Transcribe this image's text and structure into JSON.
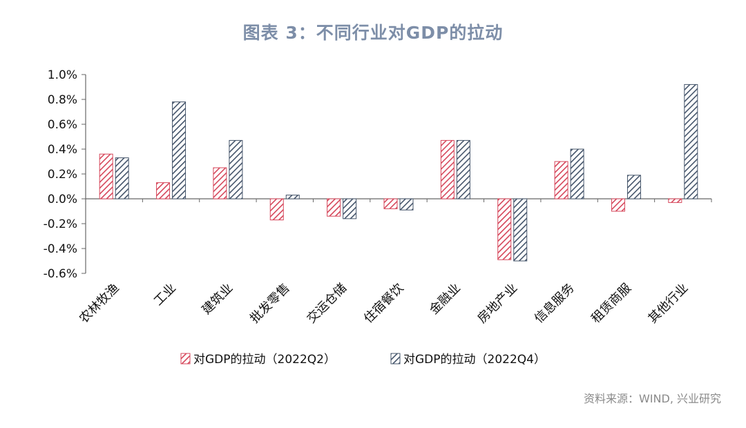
{
  "title": "图表 3：不同行业对GDP的拉动",
  "source": "资料来源：WIND, 兴业研究",
  "colors": {
    "q2": "#d6465a",
    "q4": "#44546a",
    "title": "#7d8ea8"
  },
  "chart_data": {
    "type": "bar",
    "categories": [
      "农林牧渔",
      "工业",
      "建筑业",
      "批发零售",
      "交运仓储",
      "住宿餐饮",
      "金融业",
      "房地产业",
      "信息服务",
      "租赁商服",
      "其他行业"
    ],
    "series": [
      {
        "name": "对GDP的拉动（2022Q2）",
        "values": [
          0.36,
          0.13,
          0.25,
          -0.17,
          -0.14,
          -0.08,
          0.47,
          -0.49,
          0.3,
          -0.1,
          -0.03
        ]
      },
      {
        "name": "对GDP的拉动（2022Q4）",
        "values": [
          0.33,
          0.78,
          0.47,
          0.03,
          -0.16,
          -0.09,
          0.47,
          -0.5,
          0.4,
          0.19,
          0.92
        ]
      }
    ],
    "ylim": [
      -0.6,
      1.0
    ],
    "yticks": [
      "1.0%",
      "0.8%",
      "0.6%",
      "0.4%",
      "0.2%",
      "0.0%",
      "-0.2%",
      "-0.4%",
      "-0.6%"
    ],
    "ytick_values": [
      1.0,
      0.8,
      0.6,
      0.4,
      0.2,
      0.0,
      -0.2,
      -0.4,
      -0.6
    ],
    "legend_position": "bottom",
    "grid": false,
    "bar_pattern": "diagonal-hatch"
  }
}
